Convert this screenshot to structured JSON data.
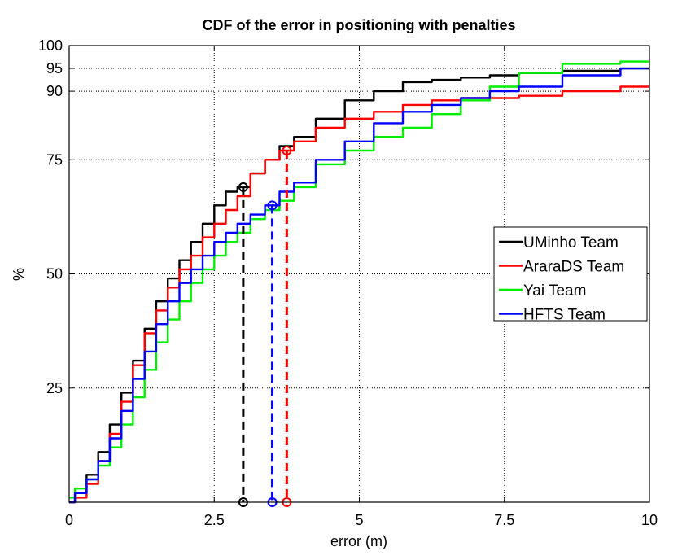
{
  "chart_data": {
    "type": "line",
    "title": "CDF of the error in positioning with penalties",
    "xlabel": "error (m)",
    "ylabel": "%",
    "xlim": [
      0,
      10
    ],
    "ylim": [
      0,
      100
    ],
    "xticks": [
      0,
      2.5,
      5,
      7.5,
      10
    ],
    "xtick_labels": [
      "0",
      "2.5",
      "5",
      "7.5",
      "10"
    ],
    "yticks": [
      25,
      50,
      75,
      90,
      95,
      100
    ],
    "ytick_labels": [
      "25",
      "50",
      "75",
      "90",
      "95",
      "100"
    ],
    "grid": true,
    "legend_position": "right",
    "series": [
      {
        "name": "UMinho Team",
        "color": "#000000",
        "x": [
          0,
          0.2,
          0.4,
          0.6,
          0.8,
          1.0,
          1.2,
          1.4,
          1.6,
          1.8,
          2.0,
          2.2,
          2.4,
          2.6,
          2.8,
          3.0,
          3.25,
          3.5,
          3.75,
          4.0,
          4.5,
          5.0,
          5.5,
          6.0,
          6.5,
          7.0,
          7.5,
          8.0,
          9.0,
          10.0
        ],
        "values": [
          0,
          2,
          6,
          11,
          17,
          24,
          31,
          38,
          44,
          49,
          53,
          57,
          61,
          65,
          68,
          69,
          72,
          75,
          78,
          80,
          84,
          88,
          90,
          92,
          92.5,
          93,
          93.5,
          94,
          94.5,
          95
        ],
        "marker": {
          "x": 3.0,
          "y": 69
        }
      },
      {
        "name": "AraraDS Team",
        "color": "#ff0000",
        "x": [
          0,
          0.2,
          0.4,
          0.6,
          0.8,
          1.0,
          1.2,
          1.4,
          1.6,
          1.8,
          2.0,
          2.2,
          2.4,
          2.6,
          2.8,
          3.0,
          3.25,
          3.5,
          3.75,
          4.0,
          4.5,
          5.0,
          5.5,
          6.0,
          6.5,
          7.0,
          7.5,
          8.0,
          9.0,
          10.0
        ],
        "values": [
          0,
          1,
          4,
          9,
          15,
          22,
          30,
          37,
          42,
          47,
          51,
          54,
          58,
          61,
          64,
          67,
          72,
          75,
          77,
          79,
          82,
          84,
          85.5,
          87,
          88,
          88.5,
          88.5,
          89,
          90,
          91
        ],
        "marker": {
          "x": 3.75,
          "y": 77
        }
      },
      {
        "name": "Yai Team",
        "color": "#00ee00",
        "x": [
          0,
          0.2,
          0.4,
          0.6,
          0.8,
          1.0,
          1.2,
          1.4,
          1.6,
          1.8,
          2.0,
          2.2,
          2.4,
          2.6,
          2.8,
          3.0,
          3.25,
          3.5,
          3.75,
          4.0,
          4.5,
          5.0,
          5.5,
          6.0,
          6.5,
          7.0,
          7.5,
          8.0,
          9.0,
          10.0
        ],
        "values": [
          1,
          3,
          5,
          8,
          12,
          17,
          23,
          29,
          35,
          40,
          44,
          48,
          51,
          54,
          57,
          59,
          62,
          64,
          66,
          69,
          74,
          77,
          80,
          82,
          85,
          88,
          91,
          94,
          96,
          96.5
        ]
      },
      {
        "name": "HFTS Team",
        "color": "#0000ff",
        "x": [
          0,
          0.2,
          0.4,
          0.6,
          0.8,
          1.0,
          1.2,
          1.4,
          1.6,
          1.8,
          2.0,
          2.2,
          2.4,
          2.6,
          2.8,
          3.0,
          3.25,
          3.5,
          3.75,
          4.0,
          4.5,
          5.0,
          5.5,
          6.0,
          6.5,
          7.0,
          7.5,
          8.0,
          9.0,
          10.0
        ],
        "values": [
          0,
          2,
          5,
          9,
          14,
          20,
          27,
          33,
          39,
          44,
          48,
          51,
          54,
          57,
          59,
          61,
          63,
          65,
          68,
          70,
          75,
          79,
          83,
          85.5,
          87,
          88.5,
          90,
          91,
          93.5,
          95
        ],
        "marker": {
          "x": 3.5,
          "y": 65
        }
      }
    ],
    "dropdowns": [
      {
        "x": 3.0,
        "color": "#000000"
      },
      {
        "x": 3.5,
        "color": "#0000ff"
      },
      {
        "x": 3.75,
        "color": "#ff0000"
      }
    ]
  }
}
